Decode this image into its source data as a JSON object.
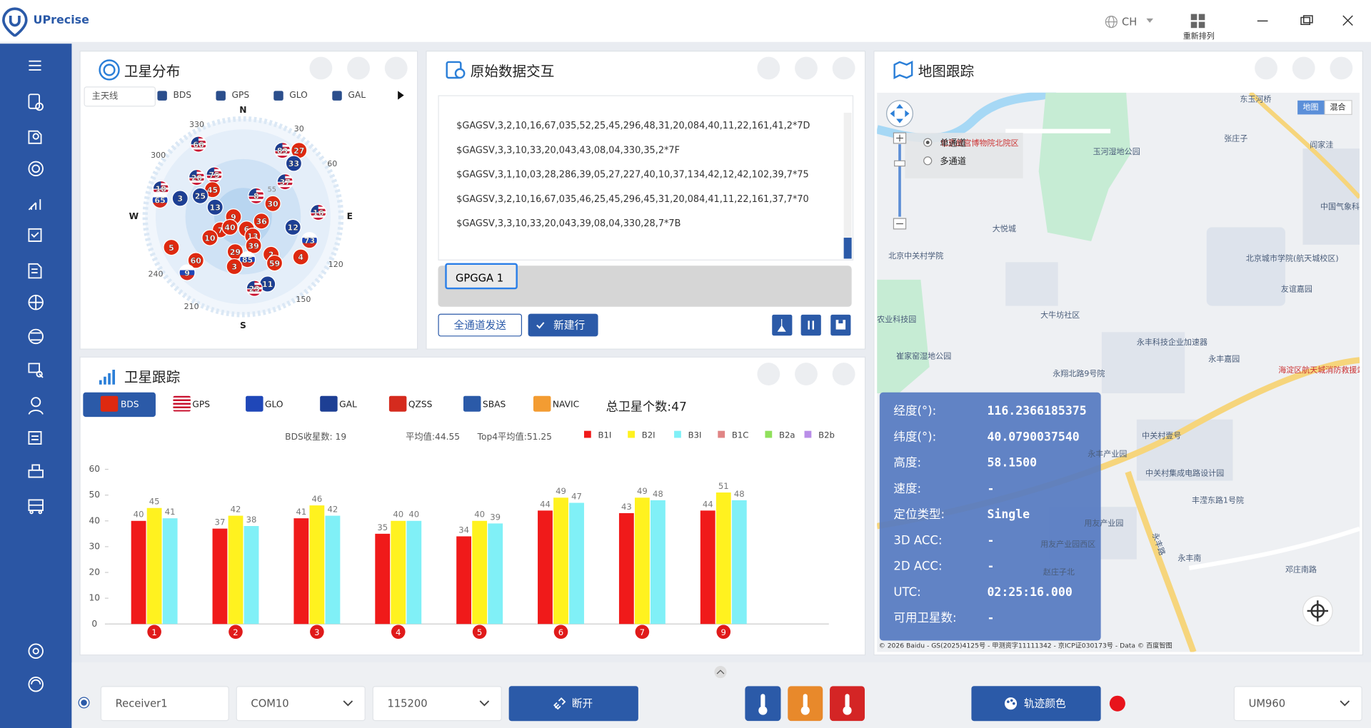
{
  "header": {
    "app_name": "UPrecise",
    "language": "CH",
    "rearrange": "重新排列"
  },
  "sky_plot": {
    "title": "卫星分布",
    "antenna": "主天线",
    "systems": [
      "BDS",
      "GPS",
      "GLO",
      "GAL"
    ],
    "directions": [
      "N",
      "E",
      "S",
      "W"
    ],
    "azimuth_labels": [
      330,
      30,
      300,
      60,
      120,
      150,
      210,
      240
    ],
    "elevation_label": "55",
    "satellites": [
      {
        "prn": "66",
        "system": "GPS"
      },
      {
        "prn": "83",
        "system": "GPS"
      },
      {
        "prn": "27",
        "system": "BDS"
      },
      {
        "prn": "33",
        "system": "GAL"
      },
      {
        "prn": "75",
        "system": "GPS"
      },
      {
        "prn": "20",
        "system": "GPS"
      },
      {
        "prn": "45",
        "system": "BDS"
      },
      {
        "prn": "18",
        "system": "GPS"
      },
      {
        "prn": "65",
        "system": "GLO"
      },
      {
        "prn": "3",
        "system": "GAL"
      },
      {
        "prn": "25",
        "system": "GAL"
      },
      {
        "prn": "37",
        "system": "GPS"
      },
      {
        "prn": "8",
        "system": "GPS"
      },
      {
        "prn": "30",
        "system": "BDS"
      },
      {
        "prn": "13",
        "system": "GAL"
      },
      {
        "prn": "16",
        "system": "GPS"
      },
      {
        "prn": "9",
        "system": "BDS"
      },
      {
        "prn": "7",
        "system": "BDS"
      },
      {
        "prn": "40",
        "system": "BDS"
      },
      {
        "prn": "6",
        "system": "BDS"
      },
      {
        "prn": "36",
        "system": "BDS"
      },
      {
        "prn": "12",
        "system": "GAL"
      },
      {
        "prn": "10",
        "system": "BDS"
      },
      {
        "prn": "13",
        "system": "BDS"
      },
      {
        "prn": "73",
        "system": "GLO"
      },
      {
        "prn": "5",
        "system": "BDS"
      },
      {
        "prn": "39",
        "system": "BDS"
      },
      {
        "prn": "29",
        "system": "BDS"
      },
      {
        "prn": "2",
        "system": "BDS"
      },
      {
        "prn": "4",
        "system": "BDS"
      },
      {
        "prn": "59",
        "system": "BDS"
      },
      {
        "prn": "60",
        "system": "BDS"
      },
      {
        "prn": "85",
        "system": "GLO"
      },
      {
        "prn": "3",
        "system": "BDS"
      },
      {
        "prn": "9",
        "system": "GLO"
      },
      {
        "prn": "11",
        "system": "GAL"
      },
      {
        "prn": "23",
        "system": "GPS"
      }
    ]
  },
  "raw_data": {
    "title": "原始数据交互",
    "lines": [
      "$GAGSV,3,2,10,16,67,035,52,25,45,296,48,31,20,084,40,11,22,161,41,2*7D",
      "$GAGSV,3,3,10,33,20,043,43,08,04,330,35,2*7F",
      "$GAGSV,3,1,10,03,28,286,39,05,27,227,40,10,37,134,42,12,42,102,39,7*75",
      "$GAGSV,3,2,10,16,67,035,46,25,45,296,45,31,20,084,41,11,22,161,37,7*70",
      "$GAGSV,3,3,10,33,20,043,39,08,04,330,28,7*7B"
    ],
    "input": "GPGGA 1",
    "send_all": "全通道发送",
    "new_line": "新建行"
  },
  "map": {
    "title": "地图跟踪",
    "channel_modes": [
      "单通道",
      "多通道"
    ],
    "map_types": [
      "地图",
      "混合"
    ],
    "places": [
      "北京故宫博物院北院区",
      "玉河湿地公园",
      "东玉河桥",
      "张庄子",
      "阎家洼",
      "中国气象科总部基地",
      "大悦城",
      "北京中关村学院",
      "北京城市学院(航天城校区)",
      "友谊嘉园",
      "大牛坊社区",
      "农业科技园",
      "崔家窑湿地公园",
      "永丰科技企业加速器",
      "永丰嘉园",
      "海淀区航天城消防救援站",
      "永翔北路9号院",
      "中关村壹号",
      "永丰产业园",
      "中关村集成电路设计园",
      "丰滢东路1号院",
      "用友产业园",
      "用友产业园西区",
      "赵庄子北",
      "永丰南",
      "邓庄南路",
      "永丰路"
    ],
    "copyright": "© 2026 Baidu - GS(2025)4125号 - 甲测资字11111342 - 京ICP证030173号 - Data © 百度智图",
    "info": [
      {
        "label": "经度(°):",
        "value": "116.2366185375"
      },
      {
        "label": "纬度(°):",
        "value": "40.0790037540"
      },
      {
        "label": "高度:",
        "value": "58.1500"
      },
      {
        "label": "速度:",
        "value": "-"
      },
      {
        "label": "定位类型:",
        "value": "Single"
      },
      {
        "label": "3D ACC:",
        "value": "-"
      },
      {
        "label": "2D ACC:",
        "value": "-"
      },
      {
        "label": "UTC:",
        "value": "02:25:16.000"
      },
      {
        "label": "可用卫星数:",
        "value": "-"
      }
    ]
  },
  "tracking": {
    "title": "卫星跟踪",
    "tabs": [
      "BDS",
      "GPS",
      "GLO",
      "GAL",
      "QZSS",
      "SBAS",
      "NAVIC"
    ],
    "total_label": "总卫星个数:",
    "total": "47",
    "count_label": "BDS收星数: 19",
    "average": "平均值:44.55",
    "top4": "Top4平均值:51.25",
    "chart_data": {
      "type": "bar",
      "categories": [
        "1",
        "2",
        "3",
        "4",
        "5",
        "6",
        "7",
        "9"
      ],
      "series": [
        {
          "name": "B1I",
          "color": "#f01a1a",
          "values": [
            40,
            37,
            41,
            35,
            34,
            44,
            43,
            44
          ]
        },
        {
          "name": "B2I",
          "color": "#fff21f",
          "values": [
            45,
            42,
            46,
            40,
            40,
            49,
            49,
            51
          ]
        },
        {
          "name": "B3I",
          "color": "#80f0f7",
          "values": [
            41,
            38,
            42,
            40,
            39,
            47,
            48,
            48
          ]
        },
        {
          "name": "B1C",
          "color": "#e08585",
          "values": [
            null,
            null,
            null,
            null,
            null,
            null,
            null,
            null
          ]
        },
        {
          "name": "B2a",
          "color": "#90e05c",
          "values": [
            null,
            null,
            null,
            null,
            null,
            null,
            null,
            null
          ]
        },
        {
          "name": "B2b",
          "color": "#b98ee8",
          "values": [
            null,
            null,
            null,
            null,
            null,
            null,
            null,
            null
          ]
        }
      ],
      "ylim": [
        0,
        60
      ],
      "yticks": [
        0,
        10,
        20,
        30,
        40,
        50,
        60
      ]
    }
  },
  "bottom_bar": {
    "receiver": "Receiver1",
    "port": "COM10",
    "baud": "115200",
    "disconnect": "断开",
    "track_color": "轨迹颜色",
    "device": "UM960"
  }
}
